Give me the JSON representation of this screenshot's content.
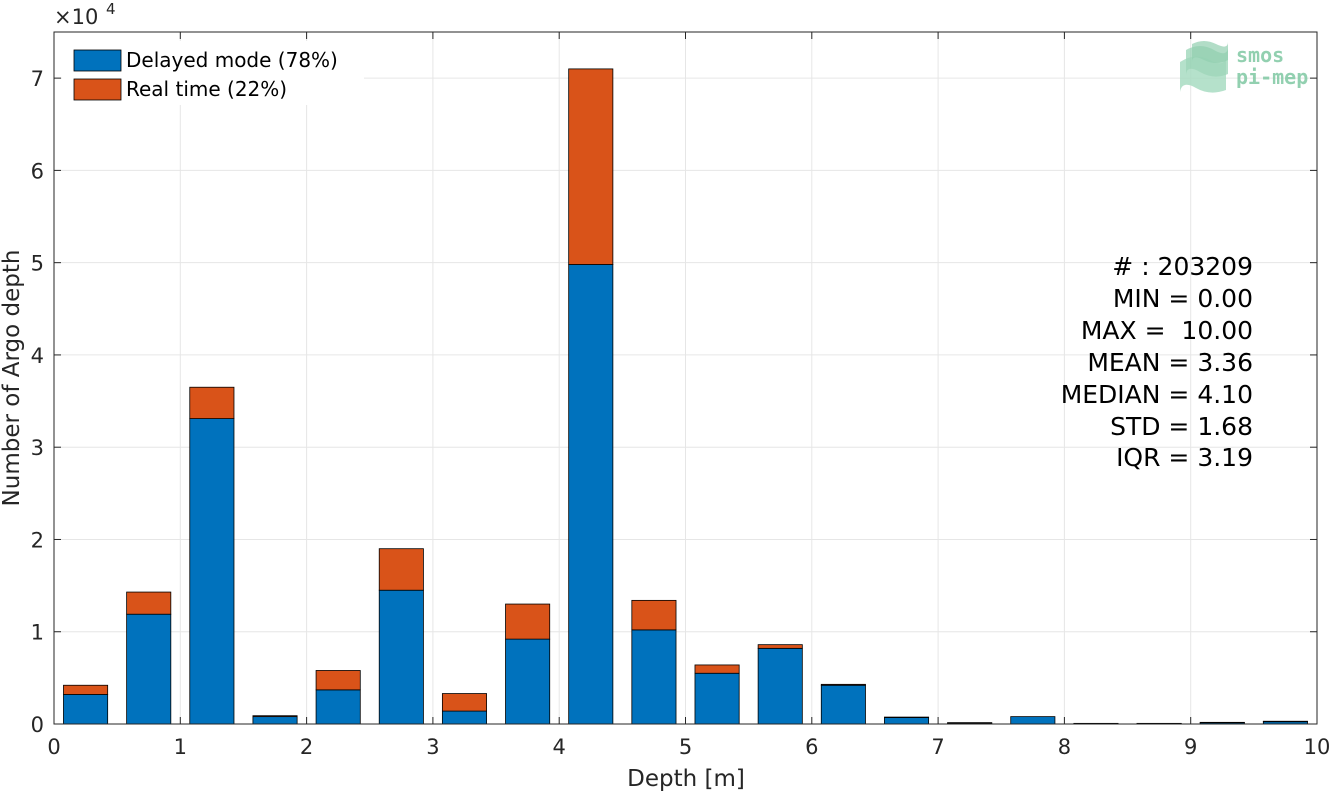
{
  "chart_data": {
    "type": "bar",
    "stacked": true,
    "xlabel": "Depth [m]",
    "ylabel": "Number of Argo depth",
    "y_exponent_label": "×10",
    "y_exponent_power": "4",
    "xlim": [
      0,
      10
    ],
    "ylim": [
      0,
      75000
    ],
    "grid": true,
    "legend_position": "top-left",
    "x_ticks": [
      "0",
      "1",
      "2",
      "3",
      "4",
      "5",
      "6",
      "7",
      "8",
      "9",
      "10"
    ],
    "y_ticks": [
      "0",
      "1",
      "2",
      "3",
      "4",
      "5",
      "6",
      "7"
    ],
    "bin_width": 0.5,
    "x": [
      0.25,
      0.75,
      1.25,
      1.75,
      2.25,
      2.75,
      3.25,
      3.75,
      4.25,
      4.75,
      5.25,
      5.75,
      6.25,
      6.75,
      7.25,
      7.75,
      8.25,
      8.75,
      9.25,
      9.75
    ],
    "series": [
      {
        "name": "Delayed mode (78%)",
        "color": "#0072bd",
        "values": [
          3200,
          11900,
          33100,
          800,
          3700,
          14500,
          1400,
          9200,
          49800,
          10200,
          5500,
          8200,
          4200,
          700,
          100,
          800,
          50,
          50,
          150,
          250
        ]
      },
      {
        "name": "Real time (22%)",
        "color": "#d95319",
        "values": [
          1000,
          2400,
          3400,
          100,
          2100,
          4500,
          1900,
          3800,
          21200,
          3200,
          900,
          400,
          100,
          50,
          50,
          0,
          20,
          20,
          30,
          50
        ]
      }
    ],
    "stats": [
      "# : 203209",
      "MIN = 0.00",
      "MAX =  10.00",
      "MEAN = 3.36",
      "MEDIAN = 4.10",
      "STD = 1.68",
      "IQR = 3.19"
    ]
  },
  "logo": {
    "line1": "smos",
    "line2": "pi-mep"
  }
}
